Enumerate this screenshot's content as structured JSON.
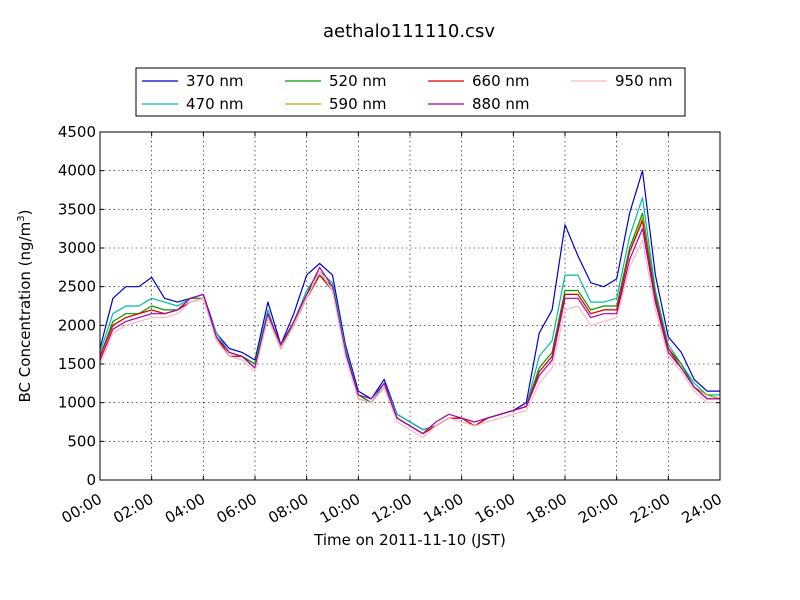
{
  "chart_data": {
    "type": "line",
    "title": "aethalo111110.csv",
    "xlabel": "Time on 2011-11-10 (JST)",
    "ylabel": "BC Concentration (ng/m",
    "ylabel_sup": "3",
    "ylabel_close": ")",
    "xlim": [
      "00:00",
      "24:00"
    ],
    "ylim": [
      0,
      4500
    ],
    "grid": true,
    "legend_placement": "top-center",
    "x_tick_labels": [
      "00:00",
      "02:00",
      "04:00",
      "06:00",
      "08:00",
      "10:00",
      "12:00",
      "14:00",
      "16:00",
      "18:00",
      "20:00",
      "22:00",
      "24:00"
    ],
    "y_tick_labels": [
      "0",
      "500",
      "1000",
      "1500",
      "2000",
      "2500",
      "3000",
      "3500",
      "4000",
      "4500"
    ],
    "x": [
      "00:00",
      "00:30",
      "01:00",
      "01:30",
      "02:00",
      "02:30",
      "03:00",
      "03:30",
      "04:00",
      "04:30",
      "05:00",
      "05:30",
      "06:00",
      "06:30",
      "07:00",
      "07:30",
      "08:00",
      "08:30",
      "09:00",
      "09:30",
      "10:00",
      "10:30",
      "11:00",
      "11:30",
      "12:00",
      "12:30",
      "13:00",
      "13:30",
      "14:00",
      "14:30",
      "15:00",
      "15:30",
      "16:00",
      "16:30",
      "17:00",
      "17:30",
      "18:00",
      "18:30",
      "19:00",
      "19:30",
      "20:00",
      "20:30",
      "21:00",
      "21:30",
      "22:00",
      "22:30",
      "23:00",
      "23:30",
      "24:00"
    ],
    "series": [
      {
        "name": "370 nm",
        "color": "#0000cc",
        "values": [
          1700,
          2350,
          2500,
          2500,
          2620,
          2350,
          2300,
          2350,
          2400,
          1900,
          1700,
          1650,
          1550,
          2300,
          1750,
          2150,
          2650,
          2800,
          2650,
          1750,
          1150,
          1050,
          1300,
          850,
          750,
          650,
          700,
          800,
          800,
          700,
          800,
          850,
          900,
          1000,
          1900,
          2200,
          3300,
          2900,
          2550,
          2500,
          2600,
          3450,
          4000,
          2650,
          1850,
          1650,
          1300,
          1150,
          1150
        ]
      },
      {
        "name": "470 nm",
        "color": "#00bbaa",
        "values": [
          1650,
          2150,
          2250,
          2250,
          2350,
          2300,
          2250,
          2350,
          2350,
          1900,
          1650,
          1600,
          1500,
          2200,
          1700,
          2050,
          2450,
          2700,
          2550,
          1700,
          1100,
          1000,
          1250,
          850,
          750,
          650,
          700,
          800,
          800,
          700,
          800,
          850,
          900,
          950,
          1600,
          1800,
          2650,
          2650,
          2300,
          2300,
          2350,
          3150,
          3650,
          2450,
          1750,
          1500,
          1250,
          1100,
          1100
        ]
      },
      {
        "name": "520 nm",
        "color": "#009900",
        "values": [
          1600,
          2050,
          2150,
          2150,
          2250,
          2200,
          2200,
          2350,
          2350,
          1850,
          1650,
          1600,
          1500,
          2150,
          1700,
          2050,
          2400,
          2650,
          2500,
          1650,
          1100,
          1000,
          1200,
          800,
          700,
          600,
          700,
          800,
          800,
          700,
          800,
          850,
          900,
          950,
          1450,
          1650,
          2450,
          2450,
          2200,
          2250,
          2250,
          3000,
          3450,
          2400,
          1700,
          1500,
          1200,
          1100,
          1050
        ]
      },
      {
        "name": "590 nm",
        "color": "#bbaa00",
        "values": [
          1600,
          2000,
          2100,
          2150,
          2200,
          2150,
          2200,
          2300,
          2350,
          1850,
          1600,
          1600,
          1450,
          2100,
          1700,
          2000,
          2350,
          2650,
          2450,
          1650,
          1050,
          1000,
          1200,
          800,
          700,
          600,
          700,
          800,
          800,
          700,
          800,
          850,
          900,
          950,
          1400,
          1600,
          2400,
          2400,
          2150,
          2200,
          2200,
          2950,
          3400,
          2350,
          1700,
          1450,
          1200,
          1100,
          1050
        ]
      },
      {
        "name": "660 nm",
        "color": "#dd0000",
        "values": [
          1600,
          2000,
          2100,
          2150,
          2200,
          2150,
          2200,
          2300,
          2350,
          1850,
          1600,
          1600,
          1450,
          2100,
          1700,
          2000,
          2350,
          2650,
          2450,
          1650,
          1050,
          1000,
          1200,
          800,
          700,
          600,
          700,
          800,
          800,
          700,
          800,
          850,
          900,
          950,
          1400,
          1600,
          2400,
          2400,
          2150,
          2200,
          2200,
          2950,
          3350,
          2350,
          1700,
          1450,
          1200,
          1050,
          1050
        ]
      },
      {
        "name": "880 nm",
        "color": "#aa00aa",
        "values": [
          1550,
          1950,
          2050,
          2100,
          2150,
          2150,
          2200,
          2350,
          2400,
          1850,
          1650,
          1600,
          1450,
          2150,
          1750,
          2050,
          2400,
          2750,
          2500,
          1650,
          1100,
          1050,
          1250,
          800,
          700,
          600,
          750,
          850,
          800,
          750,
          800,
          850,
          900,
          950,
          1350,
          1550,
          2350,
          2350,
          2100,
          2150,
          2150,
          2850,
          3250,
          2300,
          1650,
          1450,
          1200,
          1050,
          1050
        ]
      },
      {
        "name": "950 nm",
        "color": "#ffb6c1",
        "values": [
          1500,
          1900,
          2000,
          2050,
          2100,
          2100,
          2150,
          2300,
          2350,
          1800,
          1600,
          1550,
          1400,
          2100,
          1700,
          2000,
          2350,
          2700,
          2450,
          1600,
          1050,
          1000,
          1200,
          750,
          650,
          550,
          700,
          800,
          750,
          700,
          750,
          800,
          850,
          900,
          1250,
          1450,
          2200,
          2250,
          2000,
          2050,
          2100,
          2750,
          3100,
          2200,
          1600,
          1400,
          1150,
          1000,
          1000
        ]
      }
    ]
  }
}
